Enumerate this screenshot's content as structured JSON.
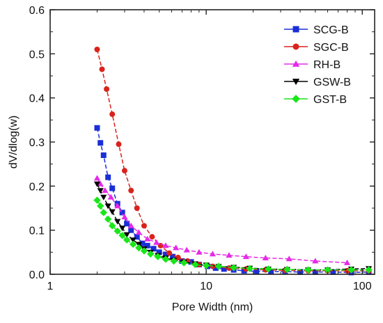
{
  "chart_data": {
    "type": "line",
    "xscale": "log",
    "xlabel": "Pore Width (nm)",
    "ylabel": "dV/dlog(w)",
    "xlim": [
      1,
      120
    ],
    "ylim": [
      0,
      0.6
    ],
    "xticks": [
      1,
      10,
      100
    ],
    "yticks": [
      0.0,
      0.1,
      0.2,
      0.3,
      0.4,
      0.5,
      0.6
    ],
    "xtick_labels": [
      "1",
      "10",
      "100"
    ],
    "ytick_labels": [
      "0.0",
      "0.1",
      "0.2",
      "0.3",
      "0.4",
      "0.5",
      "0.6"
    ],
    "legend_position": "top-right",
    "grid": false,
    "series": [
      {
        "name": "SCG-B",
        "color": "#1a2fd6",
        "marker": "square",
        "x": [
          2.0,
          2.1,
          2.2,
          2.35,
          2.5,
          2.7,
          2.9,
          3.1,
          3.3,
          3.6,
          3.9,
          4.2,
          4.6,
          5.0,
          5.5,
          6.1,
          7.0,
          8.0,
          9.0,
          10.2,
          11.5,
          13.0,
          15.0,
          17.5,
          21.0,
          26.0,
          32.0,
          40.0,
          50.0,
          65.0,
          85.0,
          110.0
        ],
        "y": [
          0.332,
          0.298,
          0.27,
          0.22,
          0.195,
          0.16,
          0.14,
          0.115,
          0.1,
          0.085,
          0.07,
          0.065,
          0.058,
          0.05,
          0.045,
          0.04,
          0.03,
          0.028,
          0.022,
          0.018,
          0.014,
          0.012,
          0.01,
          0.008,
          0.007,
          0.006,
          0.006,
          0.005,
          0.005,
          0.005,
          0.004,
          0.005
        ]
      },
      {
        "name": "SGC-B",
        "color": "#d9231c",
        "marker": "circle",
        "x": [
          2.0,
          2.15,
          2.3,
          2.5,
          2.75,
          3.0,
          3.3,
          3.6,
          4.0,
          4.5,
          5.1,
          5.8,
          6.6,
          7.6,
          9.0,
          11.0,
          14.0,
          18.0,
          24.0,
          32.0,
          45.0,
          60.0,
          80.0,
          110.0
        ],
        "y": [
          0.51,
          0.465,
          0.42,
          0.363,
          0.295,
          0.235,
          0.19,
          0.15,
          0.11,
          0.085,
          0.065,
          0.048,
          0.038,
          0.03,
          0.022,
          0.018,
          0.014,
          0.012,
          0.01,
          0.009,
          0.008,
          0.008,
          0.008,
          0.008
        ]
      },
      {
        "name": "RH-B",
        "color": "#e62ae6",
        "marker": "triangle-up",
        "x": [
          2.0,
          2.1,
          2.25,
          2.45,
          2.7,
          3.0,
          3.3,
          3.7,
          4.2,
          4.8,
          5.5,
          6.4,
          7.5,
          9.0,
          11.0,
          14.0,
          18.0,
          24.0,
          34.0,
          50.0,
          80.0
        ],
        "y": [
          0.218,
          0.205,
          0.19,
          0.175,
          0.155,
          0.13,
          0.11,
          0.095,
          0.08,
          0.072,
          0.065,
          0.06,
          0.055,
          0.05,
          0.046,
          0.043,
          0.04,
          0.037,
          0.035,
          0.03,
          0.026
        ]
      },
      {
        "name": "GSW-B",
        "color": "#000000",
        "marker": "triangle-down",
        "x": [
          2.0,
          2.1,
          2.2,
          2.35,
          2.5,
          2.7,
          2.9,
          3.1,
          3.4,
          3.7,
          4.0,
          4.4,
          4.9,
          5.5,
          6.2,
          7.2,
          8.5,
          10.0,
          12.0,
          15.0,
          19.0,
          25.0,
          33.0,
          45.0,
          60.0,
          85.0,
          110.0
        ],
        "y": [
          0.205,
          0.19,
          0.175,
          0.155,
          0.142,
          0.12,
          0.105,
          0.09,
          0.078,
          0.068,
          0.058,
          0.05,
          0.043,
          0.037,
          0.032,
          0.028,
          0.024,
          0.021,
          0.018,
          0.016,
          0.014,
          0.012,
          0.011,
          0.01,
          0.01,
          0.012,
          0.013
        ]
      },
      {
        "name": "GST-B",
        "color": "#19e619",
        "marker": "diamond",
        "x": [
          2.0,
          2.1,
          2.2,
          2.35,
          2.5,
          2.7,
          2.9,
          3.1,
          3.4,
          3.7,
          4.0,
          4.4,
          4.9,
          5.5,
          6.2,
          7.2,
          8.5,
          10.0,
          12.0,
          15.0,
          19.0,
          25.0,
          33.0,
          45.0,
          60.0,
          85.0,
          110.0
        ],
        "y": [
          0.168,
          0.155,
          0.14,
          0.125,
          0.11,
          0.098,
          0.088,
          0.078,
          0.068,
          0.06,
          0.053,
          0.046,
          0.04,
          0.034,
          0.03,
          0.026,
          0.022,
          0.02,
          0.018,
          0.015,
          0.013,
          0.012,
          0.011,
          0.01,
          0.01,
          0.01,
          0.01
        ]
      }
    ]
  }
}
